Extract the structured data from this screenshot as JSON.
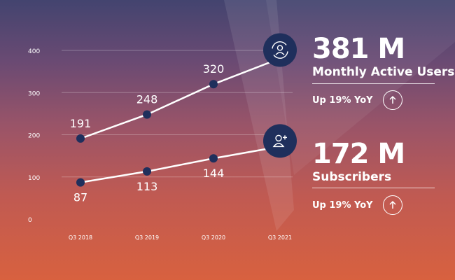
{
  "chart_data": {
    "type": "line",
    "categories": [
      "Q3 2018",
      "Q3 2019",
      "Q3 2020",
      "Q3 2021"
    ],
    "ylim": [
      0,
      400
    ],
    "yticks": [
      0,
      100,
      200,
      300,
      400
    ],
    "grid": true,
    "series": [
      {
        "name": "Monthly Active Users",
        "values": [
          191,
          248,
          320,
          381
        ],
        "labels": [
          "191",
          "248",
          "320",
          ""
        ]
      },
      {
        "name": "Subscribers",
        "values": [
          87,
          113,
          144,
          172
        ],
        "labels": [
          "87",
          "113",
          "144",
          ""
        ]
      }
    ]
  },
  "stats": [
    {
      "value": "381 M",
      "label": "Monthly Active Users",
      "yoy": "Up 19% YoY",
      "icon": "refresh-user-icon"
    },
    {
      "value": "172 M",
      "label": "Subscribers",
      "yoy": "Up 19% YoY",
      "icon": "add-user-icon"
    }
  ],
  "colors": {
    "marker": "#1f2f5c",
    "line": "#ffffff",
    "grid": "#ffffff"
  }
}
